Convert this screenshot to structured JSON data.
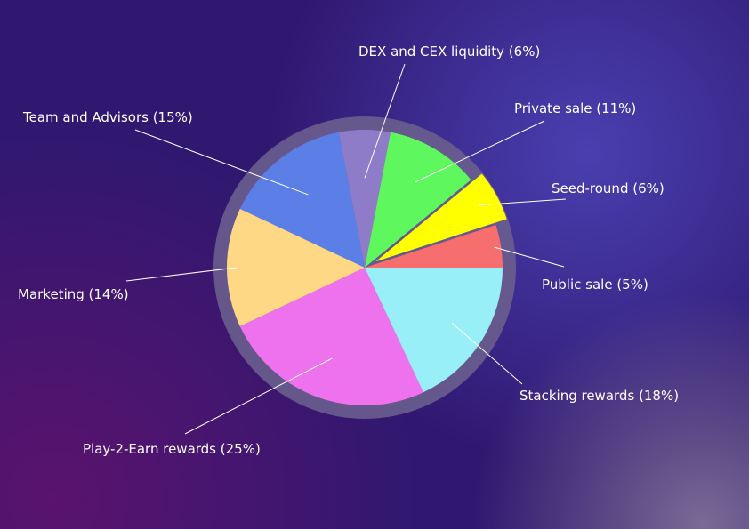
{
  "chart_data": {
    "type": "pie",
    "title": "",
    "legend": "none",
    "slices": [
      {
        "label": "Public sale (5%)",
        "value": 5,
        "color": "#f66e6e"
      },
      {
        "label": "Seed-round (6%)",
        "value": 6,
        "color": "#ffff00",
        "exploded": true
      },
      {
        "label": "Private sale (11%)",
        "value": 11,
        "color": "#5ef85e"
      },
      {
        "label": "DEX and CEX liquidity (6%)",
        "value": 6,
        "color": "#8e7cc8"
      },
      {
        "label": "Team and Advisors (15%)",
        "value": 15,
        "color": "#5b7fe6"
      },
      {
        "label": "Marketing (14%)",
        "value": 14,
        "color": "#ffd886"
      },
      {
        "label": "Play-2-Earn rewards (25%)",
        "value": 25,
        "color": "#ee72ee"
      },
      {
        "label": "Stacking rewards (18%)",
        "value": 18,
        "color": "#98eff7"
      }
    ]
  },
  "colors": {
    "background": "#2f1870",
    "ring": "#6a5e8e",
    "text": "#ffffff"
  }
}
